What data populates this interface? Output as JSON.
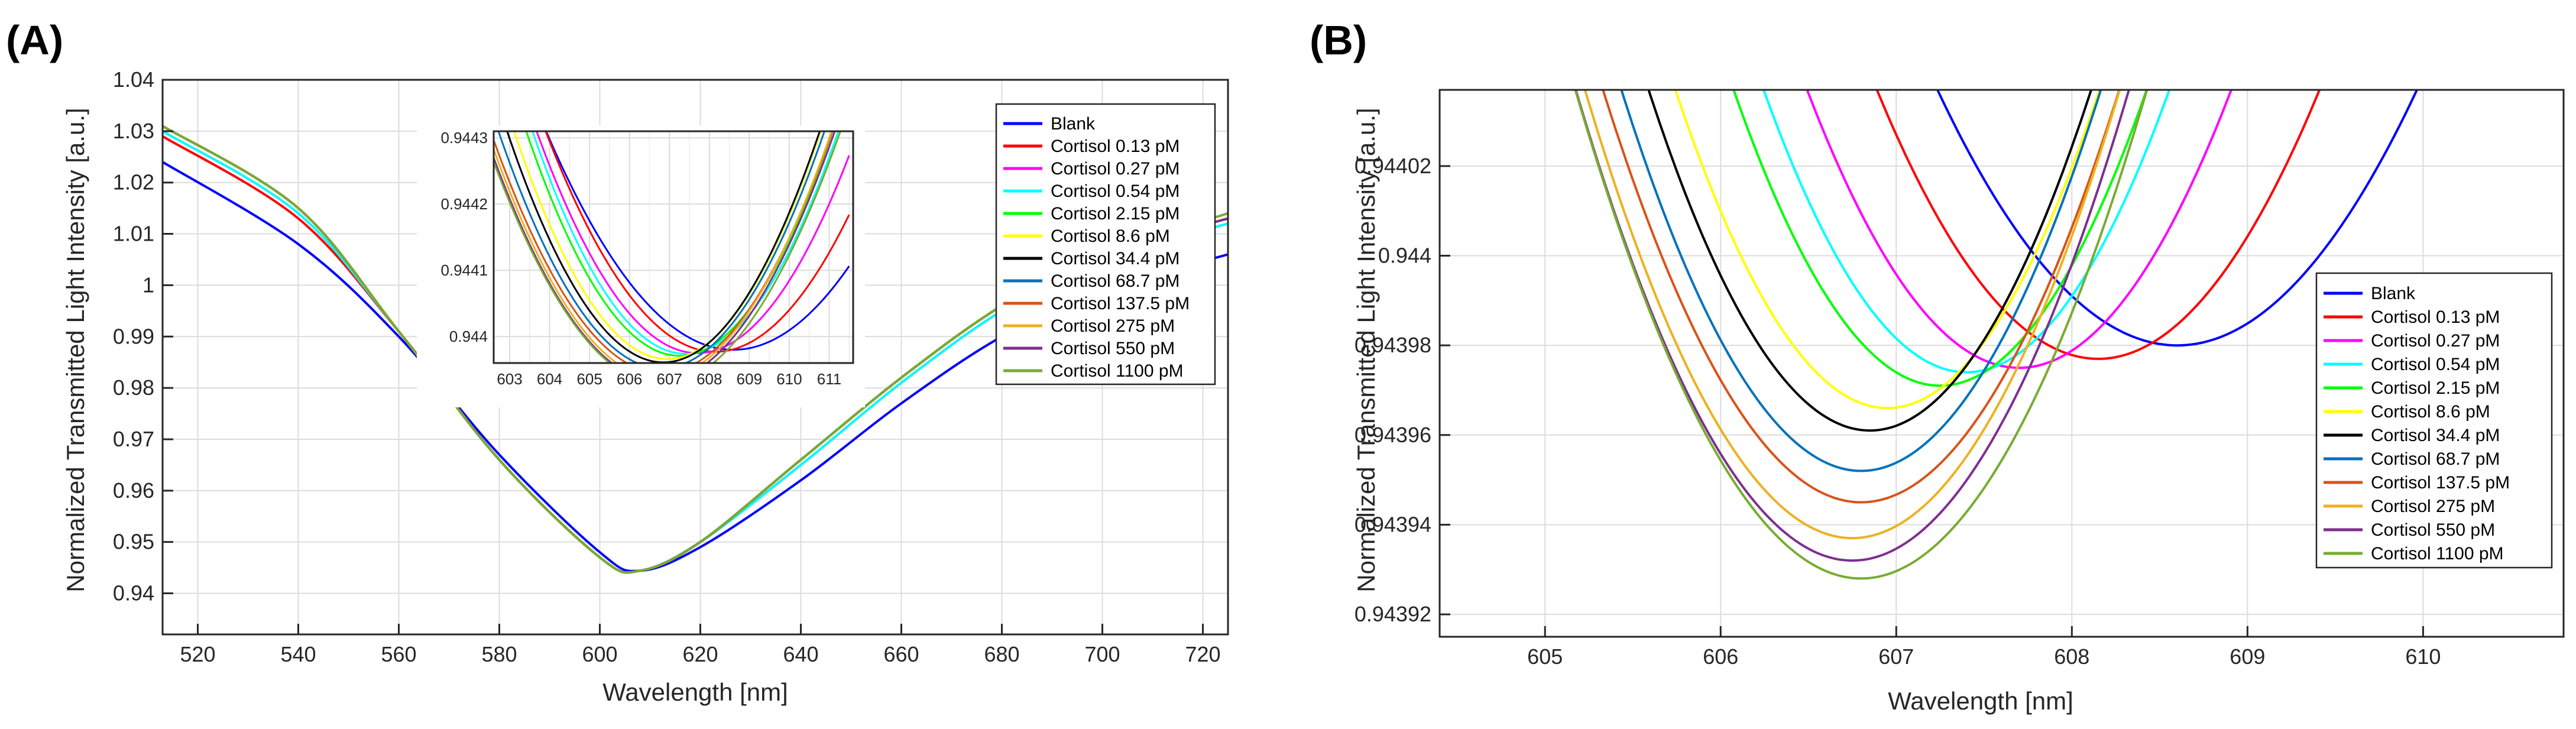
{
  "chart_data": [
    {
      "panel_label": "(A)",
      "type": "line",
      "xlabel": "Wavelength [nm]",
      "ylabel": "Normalized Transmitted Light Intensity [a.u.]",
      "xlim": [
        513,
        725
      ],
      "ylim": [
        0.932,
        1.04
      ],
      "xticks": [
        520,
        540,
        560,
        580,
        600,
        620,
        640,
        660,
        680,
        700,
        720
      ],
      "yticks": [
        0.94,
        0.95,
        0.96,
        0.97,
        0.98,
        0.99,
        1,
        1.01,
        1.02,
        1.03,
        1.04
      ],
      "xtick_labels": [
        "520",
        "540",
        "560",
        "580",
        "600",
        "620",
        "640",
        "660",
        "680",
        "700",
        "720"
      ],
      "ytick_labels": [
        "0.94",
        "0.95",
        "0.96",
        "0.97",
        "0.98",
        "0.99",
        "1",
        "1.01",
        "1.02",
        "1.03",
        "1.04"
      ],
      "grid": true,
      "legend_position": "top-right",
      "series": [
        {
          "name": "Blank",
          "color": "#0000ff",
          "x": [
            513,
            540,
            560,
            580,
            600,
            608,
            620,
            640,
            660,
            680,
            700,
            725
          ],
          "values": [
            1.024,
            1.008,
            0.99,
            0.967,
            0.948,
            0.9444,
            0.949,
            0.962,
            0.977,
            0.99,
            0.999,
            1.006
          ]
        },
        {
          "name": "Cortisol 0.13 pM",
          "color": "#ff0000",
          "x": [
            513,
            540,
            560,
            580,
            600,
            608,
            620,
            640,
            660,
            680,
            700,
            725
          ],
          "values": [
            1.029,
            1.013,
            0.991,
            0.966,
            0.947,
            0.9444,
            0.95,
            0.965,
            0.981,
            0.995,
            1.005,
            1.012
          ]
        },
        {
          "name": "Cortisol 0.27 pM",
          "color": "#ff00ff",
          "x": [
            513,
            540,
            560,
            580,
            600,
            608,
            620,
            640,
            660,
            680,
            700,
            725
          ],
          "values": [
            1.03,
            1.014,
            0.991,
            0.966,
            0.947,
            0.9444,
            0.95,
            0.965,
            0.981,
            0.995,
            1.005,
            1.012
          ]
        },
        {
          "name": "Cortisol 0.54 pM",
          "color": "#00ffff",
          "x": [
            513,
            540,
            560,
            580,
            600,
            608,
            620,
            640,
            660,
            680,
            700,
            725
          ],
          "values": [
            1.03,
            1.014,
            0.991,
            0.966,
            0.947,
            0.9444,
            0.95,
            0.965,
            0.981,
            0.995,
            1.005,
            1.012
          ]
        },
        {
          "name": "Cortisol 2.15 pM",
          "color": "#00ff00",
          "x": [
            513,
            540,
            560,
            580,
            600,
            608,
            620,
            640,
            660,
            680,
            700,
            725
          ],
          "values": [
            1.031,
            1.015,
            0.991,
            0.966,
            0.947,
            0.9444,
            0.95,
            0.966,
            0.982,
            0.996,
            1.006,
            1.013
          ]
        },
        {
          "name": "Cortisol 8.6 pM",
          "color": "#ffff00",
          "x": [
            513,
            540,
            560,
            580,
            600,
            608,
            620,
            640,
            660,
            680,
            700,
            725
          ],
          "values": [
            1.031,
            1.015,
            0.991,
            0.966,
            0.947,
            0.9444,
            0.95,
            0.966,
            0.982,
            0.996,
            1.006,
            1.013
          ]
        },
        {
          "name": "Cortisol 34.4 pM",
          "color": "#000000",
          "x": [
            513,
            540,
            560,
            580,
            600,
            608,
            620,
            640,
            660,
            680,
            700,
            725
          ],
          "values": [
            1.031,
            1.015,
            0.991,
            0.966,
            0.947,
            0.9444,
            0.95,
            0.966,
            0.982,
            0.996,
            1.006,
            1.013
          ]
        },
        {
          "name": "Cortisol 68.7 pM",
          "color": "#0072bd",
          "x": [
            513,
            540,
            560,
            580,
            600,
            608,
            620,
            640,
            660,
            680,
            700,
            725
          ],
          "values": [
            1.031,
            1.015,
            0.991,
            0.966,
            0.947,
            0.9444,
            0.95,
            0.966,
            0.982,
            0.996,
            1.006,
            1.013
          ]
        },
        {
          "name": "Cortisol 137.5 pM",
          "color": "#d95319",
          "x": [
            513,
            540,
            560,
            580,
            600,
            608,
            620,
            640,
            660,
            680,
            700,
            725
          ],
          "values": [
            1.031,
            1.015,
            0.991,
            0.966,
            0.947,
            0.9444,
            0.95,
            0.966,
            0.982,
            0.996,
            1.006,
            1.013
          ]
        },
        {
          "name": "Cortisol 275 pM",
          "color": "#edb120",
          "x": [
            513,
            540,
            560,
            580,
            600,
            608,
            620,
            640,
            660,
            680,
            700,
            725
          ],
          "values": [
            1.031,
            1.015,
            0.991,
            0.966,
            0.947,
            0.9444,
            0.95,
            0.966,
            0.982,
            0.996,
            1.006,
            1.013
          ]
        },
        {
          "name": "Cortisol 550 pM",
          "color": "#7e2f8e",
          "x": [
            513,
            540,
            560,
            580,
            600,
            608,
            620,
            640,
            660,
            680,
            700,
            725
          ],
          "values": [
            1.031,
            1.015,
            0.991,
            0.966,
            0.947,
            0.9444,
            0.95,
            0.966,
            0.982,
            0.996,
            1.006,
            1.013
          ]
        },
        {
          "name": "Cortisol 1100 pM",
          "color": "#77ac30",
          "x": [
            513,
            540,
            560,
            580,
            600,
            608,
            620,
            640,
            660,
            680,
            700,
            725
          ],
          "values": [
            1.031,
            1.015,
            0.991,
            0.966,
            0.947,
            0.9444,
            0.95,
            0.966,
            0.982,
            0.996,
            1.006,
            1.014
          ]
        }
      ],
      "inset": {
        "type": "line",
        "xlim": [
          602.6,
          611.6
        ],
        "ylim": [
          0.94396,
          0.94431
        ],
        "xticks": [
          603,
          604,
          605,
          606,
          607,
          608,
          609,
          610,
          611
        ],
        "yticks": [
          0.944,
          0.9441,
          0.9442,
          0.9443
        ],
        "xtick_labels": [
          "603",
          "604",
          "605",
          "606",
          "607",
          "608",
          "609",
          "610",
          "611"
        ],
        "ytick_labels": [
          "0.944",
          "0.9441",
          "0.9442",
          "0.9443"
        ],
        "grid": true
      }
    },
    {
      "panel_label": "(B)",
      "type": "line",
      "xlabel": "Wavelength [nm]",
      "ylabel": "Normalized Transmitted Light Intensity [a.u.]",
      "xlim": [
        604.4,
        610.8
      ],
      "ylim": [
        0.943915,
        0.944037
      ],
      "xticks": [
        605,
        606,
        607,
        608,
        609,
        610
      ],
      "yticks": [
        0.94392,
        0.94394,
        0.94396,
        0.94398,
        0.944,
        0.94402
      ],
      "xtick_labels": [
        "605",
        "606",
        "607",
        "608",
        "609",
        "610"
      ],
      "ytick_labels": [
        "0.94392",
        "0.94394",
        "0.94396",
        "0.94398",
        "0.944",
        "0.94402"
      ],
      "grid": true,
      "legend_position": "right",
      "series": [
        {
          "name": "Blank",
          "color": "#0000ff",
          "min_x": 608.6,
          "min_y": 0.94398,
          "half_width": 1.3
        },
        {
          "name": "Cortisol 0.13 pM",
          "color": "#ff0000",
          "min_x": 608.15,
          "min_y": 0.943977,
          "half_width": 1.2
        },
        {
          "name": "Cortisol 0.27 pM",
          "color": "#ff00ff",
          "min_x": 607.7,
          "min_y": 0.943975,
          "half_width": 1.15
        },
        {
          "name": "Cortisol 0.54 pM",
          "color": "#00ffff",
          "min_x": 607.4,
          "min_y": 0.943974,
          "half_width": 1.1
        },
        {
          "name": "Cortisol 2.15 pM",
          "color": "#00ff00",
          "min_x": 607.25,
          "min_y": 0.943971,
          "half_width": 1.12
        },
        {
          "name": "Cortisol 8.6 pM",
          "color": "#ffff00",
          "min_x": 606.95,
          "min_y": 0.943966,
          "half_width": 1.15
        },
        {
          "name": "Cortisol 34.4 pM",
          "color": "#000000",
          "min_x": 606.85,
          "min_y": 0.943961,
          "half_width": 1.2
        },
        {
          "name": "Cortisol 68.7 pM",
          "color": "#0072bd",
          "min_x": 606.8,
          "min_y": 0.943952,
          "half_width": 1.3
        },
        {
          "name": "Cortisol 137.5 pM",
          "color": "#d95319",
          "min_x": 606.8,
          "min_y": 0.943945,
          "half_width": 1.4
        },
        {
          "name": "Cortisol 275 pM",
          "color": "#edb120",
          "min_x": 606.75,
          "min_y": 0.943937,
          "half_width": 1.45
        },
        {
          "name": "Cortisol 550 pM",
          "color": "#7e2f8e",
          "min_x": 606.75,
          "min_y": 0.943932,
          "half_width": 1.5
        },
        {
          "name": "Cortisol 1100 pM",
          "color": "#77ac30",
          "min_x": 606.8,
          "min_y": 0.943928,
          "half_width": 1.55
        }
      ]
    }
  ]
}
